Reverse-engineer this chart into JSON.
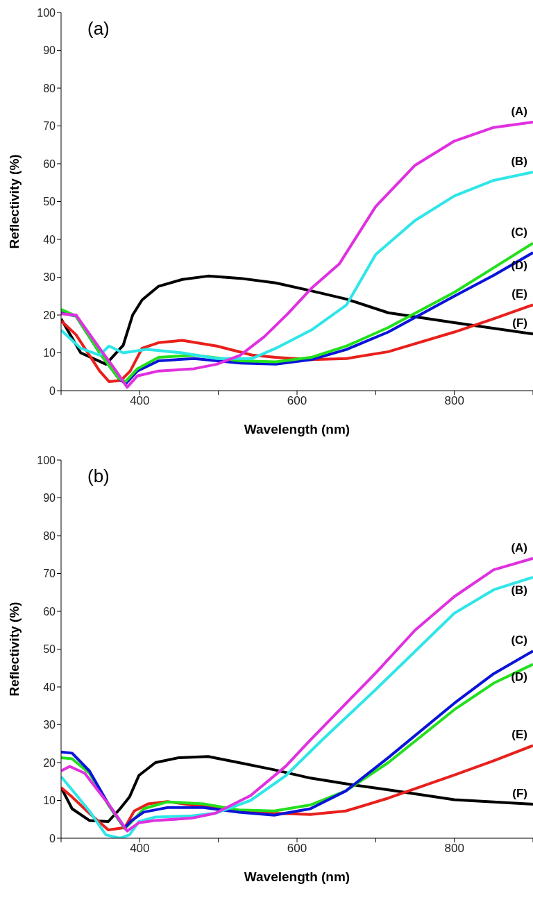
{
  "chart_data": [
    {
      "type": "line",
      "title": "(a)",
      "xlabel": "Wavelength (nm)",
      "ylabel": "Reflectivity (%)",
      "xlim": [
        300,
        900
      ],
      "ylim": [
        0,
        100
      ],
      "xticks": [
        {
          "value": 300,
          "label": null
        },
        400,
        {
          "value": 500,
          "label": null
        },
        600,
        {
          "value": 700,
          "label": null
        },
        800,
        {
          "value": 900,
          "label": null
        }
      ],
      "yticks": [
        0,
        10,
        20,
        30,
        40,
        50,
        60,
        70,
        80,
        90,
        100
      ],
      "grid": false,
      "legend": false,
      "marker": "none",
      "line_style": "solid",
      "series": [
        {
          "name": "(F)",
          "color": "#000000",
          "x": [
            300,
            325,
            357,
            379,
            391,
            403,
            424,
            454,
            487,
            528,
            573,
            618,
            663,
            716,
            800,
            900
          ],
          "values": [
            19,
            10,
            7,
            12,
            20,
            24,
            27.6,
            29.4,
            30.3,
            29.7,
            28.5,
            26.4,
            24.2,
            20.6,
            18,
            15
          ]
        },
        {
          "name": "(E)",
          "color": "#e8201c",
          "x": [
            300,
            319,
            349,
            361,
            376,
            388,
            403,
            424,
            454,
            498,
            543,
            573,
            618,
            663,
            716,
            800,
            850,
            900
          ],
          "values": [
            18.5,
            14.8,
            5.2,
            2.4,
            2.7,
            5.2,
            11.2,
            12.7,
            13.3,
            11.8,
            9.4,
            8.8,
            8.2,
            8.5,
            10.3,
            15.5,
            19,
            22.7
          ]
        },
        {
          "name": "(D)",
          "color": "#0a14d8",
          "x": [
            300,
            319,
            349,
            373,
            382,
            397,
            424,
            469,
            528,
            573,
            618,
            663,
            716,
            800,
            850,
            900
          ],
          "values": [
            20.6,
            19.7,
            10,
            3.3,
            1.8,
            5.2,
            7.9,
            8.5,
            7.3,
            7,
            8.2,
            10.9,
            15.5,
            25,
            30.5,
            36.5
          ]
        },
        {
          "name": "(C)",
          "color": "#22e01c",
          "x": [
            300,
            319,
            349,
            373,
            382,
            397,
            424,
            469,
            528,
            573,
            618,
            663,
            716,
            800,
            850,
            900
          ],
          "values": [
            21.5,
            19.7,
            10,
            3.3,
            2.4,
            5.8,
            8.8,
            9.4,
            7.9,
            7.6,
            8.8,
            11.8,
            16.7,
            26,
            32.5,
            39
          ]
        },
        {
          "name": "(B)",
          "color": "#2ee6e8",
          "x": [
            300,
            325,
            349,
            361,
            379,
            409,
            454,
            498,
            543,
            573,
            618,
            663,
            700,
            750,
            800,
            850,
            900
          ],
          "values": [
            16,
            11.2,
            9.4,
            11.8,
            10,
            10.9,
            10,
            8.5,
            8.5,
            11.2,
            16,
            22.7,
            36,
            45,
            51.5,
            55.6,
            57.8
          ]
        },
        {
          "name": "(A)",
          "color": "#e030e0",
          "x": [
            300,
            319,
            349,
            370,
            384,
            397,
            424,
            469,
            498,
            528,
            558,
            588,
            618,
            654,
            700,
            750,
            800,
            850,
            900
          ],
          "values": [
            20.3,
            20,
            11.2,
            5.2,
            0.9,
            3.9,
            5.2,
            5.8,
            7,
            9.4,
            14.2,
            20.3,
            27,
            33.6,
            48.7,
            59.6,
            66,
            69.6,
            71
          ]
        }
      ]
    },
    {
      "type": "line",
      "title": "(b)",
      "xlabel": "Wavelength (nm)",
      "ylabel": "Reflectivity (%)",
      "xlim": [
        300,
        900
      ],
      "ylim": [
        0,
        100
      ],
      "xticks": [
        {
          "value": 300,
          "label": null
        },
        400,
        {
          "value": 500,
          "label": null
        },
        600,
        {
          "value": 700,
          "label": null
        },
        800,
        {
          "value": 900,
          "label": null
        }
      ],
      "yticks": [
        0,
        10,
        20,
        30,
        40,
        50,
        60,
        70,
        80,
        90,
        100
      ],
      "grid": false,
      "legend": false,
      "marker": "none",
      "line_style": "solid",
      "series": [
        {
          "name": "(F)",
          "color": "#000000",
          "x": [
            300,
            314,
            336,
            360,
            375,
            387,
            399,
            420,
            450,
            487,
            526,
            571,
            617,
            662,
            716,
            800,
            900
          ],
          "values": [
            13.4,
            7.8,
            4.7,
            4.4,
            7.8,
            10.9,
            16.6,
            20,
            21.3,
            21.6,
            20,
            18.1,
            15.9,
            14.4,
            12.8,
            10.2,
            9
          ]
        },
        {
          "name": "(E)",
          "color": "#e8201c",
          "x": [
            300,
            314,
            336,
            360,
            381,
            393,
            411,
            435,
            481,
            526,
            571,
            617,
            662,
            716,
            800,
            850,
            900
          ],
          "values": [
            13.4,
            10.9,
            6.6,
            2.2,
            2.8,
            7.2,
            9.1,
            9.7,
            8.4,
            7.2,
            6.6,
            6.3,
            7.2,
            10.6,
            16.7,
            20.5,
            24.5
          ]
        },
        {
          "name": "(D)",
          "color": "#22e01c",
          "x": [
            300,
            314,
            336,
            360,
            381,
            390,
            405,
            435,
            481,
            526,
            571,
            617,
            662,
            716,
            800,
            850,
            900
          ],
          "values": [
            21.3,
            21,
            17.2,
            8.8,
            2.5,
            4.4,
            7.8,
            9.6,
            9.1,
            7.5,
            7.2,
            8.8,
            12.5,
            20,
            34,
            41,
            46
          ]
        },
        {
          "name": "(C)",
          "color": "#0a14d8",
          "x": [
            300,
            314,
            336,
            360,
            381,
            390,
            405,
            435,
            481,
            526,
            571,
            617,
            662,
            716,
            800,
            850,
            900
          ],
          "values": [
            22.8,
            22.5,
            17.8,
            9.1,
            2.8,
            4.7,
            6.9,
            8.1,
            8.1,
            6.9,
            6.1,
            7.8,
            12.5,
            21.3,
            35.7,
            43.5,
            49.5
          ]
        },
        {
          "name": "(B)",
          "color": "#2ee6e8",
          "x": [
            300,
            314,
            336,
            357,
            375,
            387,
            399,
            420,
            466,
            496,
            541,
            586,
            632,
            700,
            800,
            850,
            900
          ],
          "values": [
            16.3,
            12.8,
            7.2,
            0.9,
            0,
            0.9,
            4.4,
            5.6,
            5.9,
            6.6,
            10,
            16.6,
            26,
            39.3,
            59.5,
            65.7,
            69
          ]
        },
        {
          "name": "(A)",
          "color": "#e030e0",
          "x": [
            300,
            311,
            330,
            360,
            384,
            399,
            420,
            466,
            496,
            541,
            586,
            617,
            700,
            750,
            800,
            850,
            900
          ],
          "values": [
            17.8,
            19,
            17.2,
            9.1,
            1.9,
            4.1,
            4.7,
            5.3,
            6.6,
            11.3,
            19.1,
            26,
            43.7,
            55,
            63.9,
            71,
            74
          ]
        }
      ]
    }
  ]
}
